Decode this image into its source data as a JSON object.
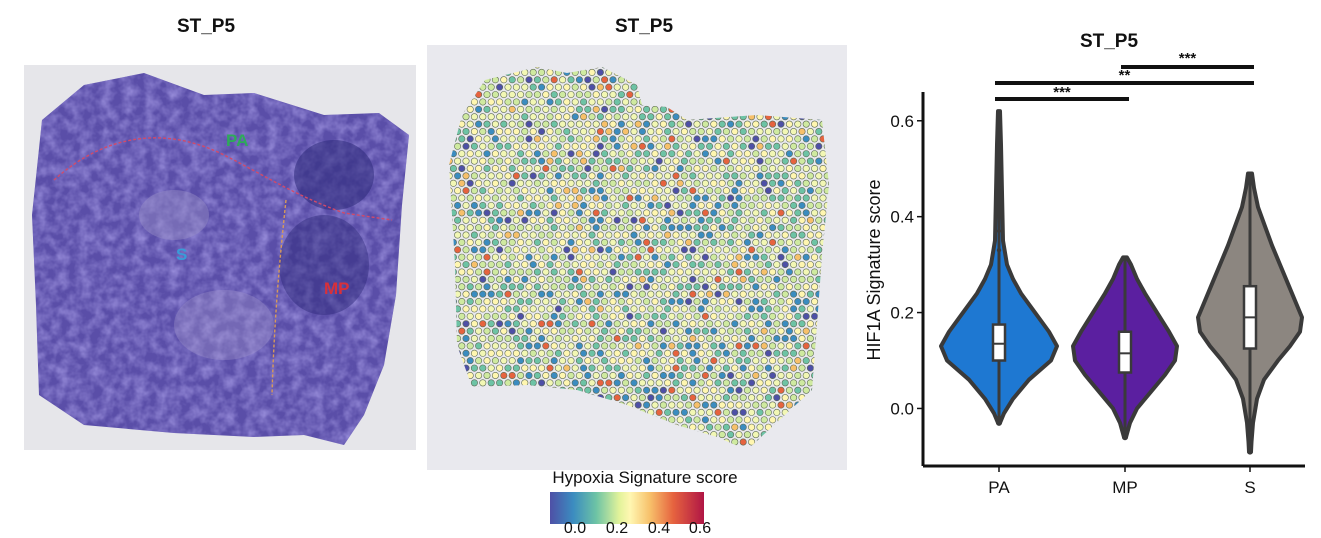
{
  "panels": {
    "left_title": "ST_P5",
    "middle_title": "ST_P5",
    "regions": {
      "pa": {
        "label": "PA",
        "color": "#2eaa5a"
      },
      "s": {
        "label": "S",
        "color": "#3a9bd8"
      },
      "mp": {
        "label": "MP",
        "color": "#d8303a"
      }
    },
    "colorbar": {
      "title": "Hypoxia Signature score",
      "ticks": [
        "0.0",
        "0.2",
        "0.4",
        "0.6"
      ]
    }
  },
  "chart_data": {
    "type": "violin",
    "title": "ST_P5",
    "xlabel": "",
    "ylabel": "HIF1A Signature score",
    "ylim": [
      -0.12,
      0.66
    ],
    "yticks": [
      0.0,
      0.2,
      0.4,
      0.6
    ],
    "ytick_labels": [
      "0.0",
      "0.2",
      "0.4",
      "0.6"
    ],
    "categories": [
      "PA",
      "MP",
      "S"
    ],
    "colors": [
      "#1e78d2",
      "#5b1fa0",
      "#8c8680"
    ],
    "series": [
      {
        "name": "PA",
        "min": -0.03,
        "max": 0.62,
        "q1": 0.1,
        "median": 0.135,
        "q3": 0.175
      },
      {
        "name": "MP",
        "min": -0.06,
        "max": 0.315,
        "q1": 0.075,
        "median": 0.115,
        "q3": 0.16
      },
      {
        "name": "S",
        "min": -0.09,
        "max": 0.49,
        "q1": 0.125,
        "median": 0.19,
        "q3": 0.255
      }
    ],
    "significance": [
      {
        "from": "PA",
        "to": "MP",
        "label": "***"
      },
      {
        "from": "PA",
        "to": "S",
        "label": "**"
      },
      {
        "from": "MP",
        "to": "S",
        "label": "***"
      }
    ]
  }
}
